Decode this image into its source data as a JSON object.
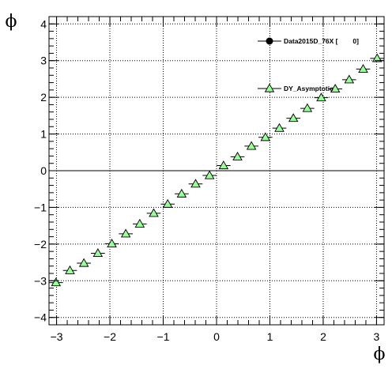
{
  "chart_data": {
    "type": "scatter",
    "xlabel": "ϕ",
    "ylabel": "ϕ",
    "xlim": [
      -3.14159,
      3.14159
    ],
    "ylim": [
      -4.2,
      4.2
    ],
    "grid": true,
    "legend_placement": "top-right",
    "x_ticks": [
      -3,
      -2,
      -1,
      0,
      1,
      2,
      3
    ],
    "y_ticks": [
      -4,
      -3,
      -2,
      -1,
      0,
      1,
      2,
      3,
      4
    ],
    "x_tick_labels": [
      "−3",
      "−2",
      "−1",
      "0",
      "1",
      "2",
      "3"
    ],
    "y_tick_labels": [
      "−4",
      "−3",
      "−2",
      "−1",
      "0",
      "1",
      "2",
      "3",
      "4"
    ],
    "bin_half_width": 0.1309,
    "series": [
      {
        "name": "Data2015D_76X [        0]",
        "marker": "circle",
        "color": "#000000",
        "x": [],
        "y": []
      },
      {
        "name": "DY_Asymptotic",
        "marker": "triangle",
        "fill": "#99ff99",
        "color": "#000000",
        "x": [
          -3.011,
          -2.749,
          -2.487,
          -2.225,
          -1.963,
          -1.702,
          -1.44,
          -1.178,
          -0.916,
          -0.654,
          -0.393,
          -0.131,
          0.131,
          0.393,
          0.654,
          0.916,
          1.178,
          1.44,
          1.702,
          1.963,
          2.225,
          2.487,
          2.749,
          3.011
        ],
        "y": [
          -3.05,
          -2.72,
          -2.52,
          -2.25,
          -1.99,
          -1.72,
          -1.45,
          -1.16,
          -0.91,
          -0.63,
          -0.36,
          -0.13,
          0.14,
          0.38,
          0.67,
          0.91,
          1.16,
          1.43,
          1.7,
          1.99,
          2.23,
          2.48,
          2.77,
          3.06
        ]
      }
    ]
  }
}
